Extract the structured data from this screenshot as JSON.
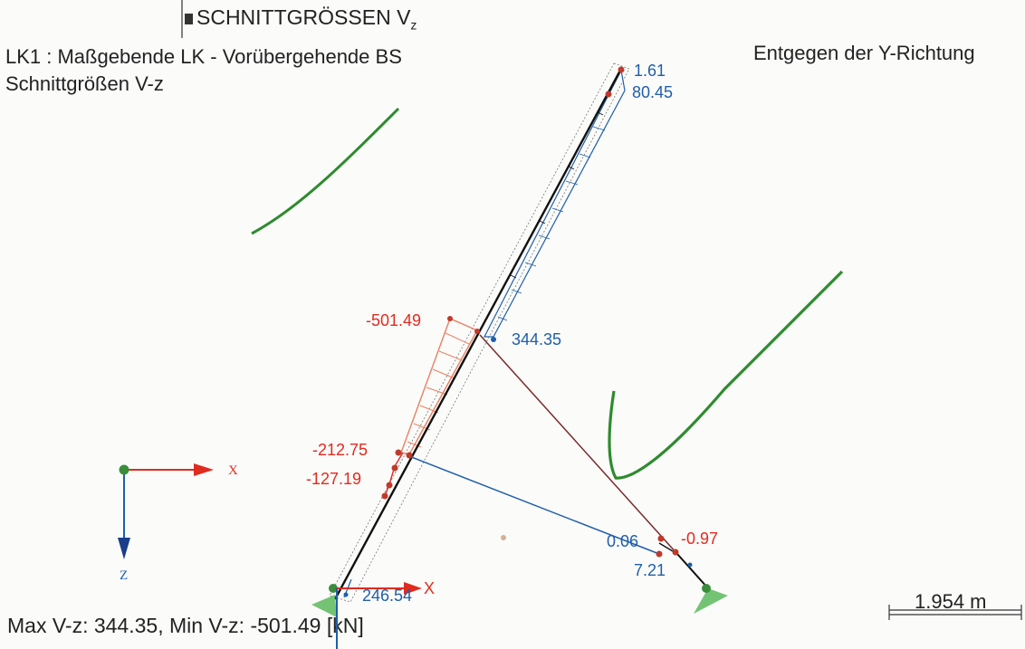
{
  "title": "SCHNITTGRÖSSEN V",
  "title_subscript": "z",
  "load_case": "LK1 : Maßgebende LK - Vorübergehende BS",
  "result_type": "Schnittgrößen V-z",
  "direction": "Entgegen der Y-Richtung",
  "summary": "Max V-z: 344.35, Min V-z: -501.49 [kN]",
  "scale_length": "1.954 m",
  "axes": {
    "x_label": "X",
    "z_label": "Z",
    "support_x_label": "X"
  },
  "values": {
    "top_upper": "1.61",
    "top_lower": "80.45",
    "mid_blue": "344.35",
    "mid_red": "-501.49",
    "lower_red_1": "-212.75",
    "lower_red_2": "-127.19",
    "base_blue": "246.54",
    "right_blue_1": "0.06",
    "right_red": "-0.97",
    "right_blue_2": "7.21"
  },
  "colors": {
    "negative": "#e02b20",
    "positive": "#1f5fa8",
    "member": "#111111",
    "support": "#5cb85c",
    "annotation": "#2e8b2e"
  }
}
